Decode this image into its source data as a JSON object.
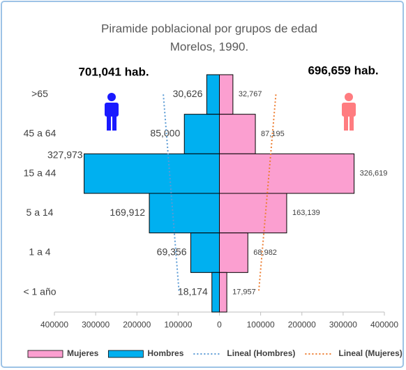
{
  "chart_data": {
    "type": "pyramid",
    "title": "Piramide poblacional por grupos de edad",
    "subtitle": "Morelos, 1990.",
    "annotations": [
      "701,041 hab.",
      "696,659 hab."
    ],
    "categories": [
      ">65",
      "45 a 64",
      "15 a 44",
      "5 a 14",
      "1 a 4",
      "< 1 año"
    ],
    "series": [
      {
        "name": "Mujeres",
        "color": "#fb9fd0",
        "values": [
          32767,
          87195,
          326619,
          163139,
          68982,
          17957
        ],
        "value_labels": [
          "32,767",
          "87,195",
          "326,619",
          "163,139",
          "68,982",
          "17,957"
        ],
        "trendline": {
          "name": "Lineal (Mujeres)",
          "color": "#ed7d31"
        }
      },
      {
        "name": "Hombres",
        "color": "#00b0f0",
        "values": [
          -30626,
          -85000,
          -327973,
          -169912,
          -69356,
          -18174
        ],
        "value_labels": [
          "30,626",
          "85,000",
          "327,973",
          "169,912",
          "69,356",
          "18,174"
        ],
        "trendline": {
          "name": "Lineal (Hombres)",
          "color": "#5b9bd5"
        }
      }
    ],
    "xlim": [
      -400000,
      400000
    ],
    "xticks": [
      {
        "value": -400000,
        "label": "400000"
      },
      {
        "value": -300000,
        "label": "300000"
      },
      {
        "value": -200000,
        "label": "200000"
      },
      {
        "value": -100000,
        "label": "100000"
      },
      0,
      100000,
      200000,
      300000,
      400000
    ]
  }
}
